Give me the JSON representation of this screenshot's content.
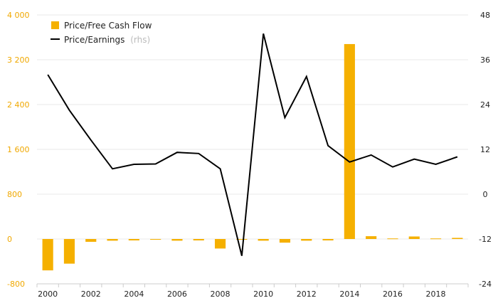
{
  "chart_data": {
    "type": "bar",
    "x": [
      "2000",
      "2001",
      "2002",
      "2003",
      "2004",
      "2005",
      "2006",
      "2007",
      "2008",
      "2009",
      "2010",
      "2011",
      "2012",
      "2013",
      "2014",
      "2015",
      "2016",
      "2017",
      "2018",
      "2019"
    ],
    "series": [
      {
        "name": "Price/Free Cash Flow",
        "type": "bar",
        "axis": "left",
        "values": [
          -560,
          -440,
          -50,
          -30,
          -25,
          -10,
          -30,
          -25,
          -170,
          -10,
          -30,
          -65,
          -30,
          -25,
          3480,
          50,
          10,
          45,
          10,
          20
        ]
      },
      {
        "name": "Price/Earnings",
        "type": "line",
        "axis": "right",
        "values": [
          32,
          22.5,
          14.5,
          6.8,
          8,
          8.1,
          11.2,
          10.9,
          6.8,
          -16.5,
          43,
          20.5,
          31.5,
          13,
          8.6,
          10.5,
          7.3,
          9.4,
          8,
          10
        ]
      }
    ],
    "y_left": {
      "ylim": [
        -800,
        4000
      ],
      "ticks": [
        -800,
        0,
        800,
        1600,
        2400,
        3200,
        4000
      ],
      "tick_labels": [
        "-800",
        "0",
        "800",
        "1 600",
        "2 400",
        "3 200",
        "4 000"
      ]
    },
    "y_right": {
      "ylim": [
        -24,
        48
      ],
      "ticks": [
        -24,
        -12,
        0,
        12,
        24,
        36,
        48
      ],
      "tick_labels": [
        "-24",
        "-12",
        "0",
        "12",
        "24",
        "36",
        "48"
      ]
    },
    "x_tick_labels": [
      "2000",
      "2002",
      "2004",
      "2006",
      "2008",
      "2010",
      "2012",
      "2014",
      "2016",
      "2018"
    ],
    "legend": {
      "position": "top-left",
      "entries": [
        {
          "label": "Price/Free Cash Flow",
          "note": ""
        },
        {
          "label": "Price/Earnings",
          "note": "(rhs)"
        }
      ]
    },
    "grid": true
  },
  "colors": {
    "bar": "#f5b000",
    "line": "#000000",
    "grid": "#e8e8e8",
    "left_axis_text": "#f0a800",
    "right_axis_text": "#222222"
  }
}
